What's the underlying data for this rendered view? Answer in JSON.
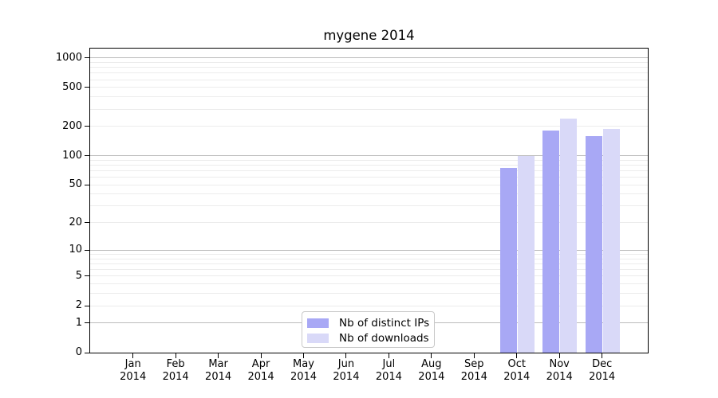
{
  "chart_data": {
    "type": "bar",
    "title": "mygene 2014",
    "categories": [
      "Jan",
      "Feb",
      "Mar",
      "Apr",
      "May",
      "Jun",
      "Jul",
      "Aug",
      "Sep",
      "Oct",
      "Nov",
      "Dec"
    ],
    "x_year_line": "2014",
    "series": [
      {
        "name": "Nb of distinct IPs",
        "color": "#a8a8f5",
        "values": [
          0,
          0,
          0,
          0,
          0,
          0,
          0,
          0,
          0,
          75,
          180,
          160
        ]
      },
      {
        "name": "Nb of downloads",
        "color": "#d9d9f8",
        "values": [
          0,
          0,
          0,
          0,
          0,
          0,
          0,
          0,
          0,
          100,
          240,
          190
        ]
      }
    ],
    "y_axis": {
      "scale": "log10(1+x)",
      "ticks": [
        0,
        1,
        2,
        5,
        10,
        20,
        50,
        100,
        200,
        500,
        1000
      ],
      "major_gridlines": [
        1,
        10,
        100,
        1000
      ],
      "minor_gridlines": [
        2,
        3,
        4,
        5,
        6,
        7,
        8,
        9,
        20,
        30,
        40,
        50,
        60,
        70,
        80,
        90,
        200,
        300,
        400,
        500,
        600,
        700,
        800,
        900
      ],
      "ylim": [
        0,
        1250
      ]
    },
    "xlabel": "",
    "ylabel": "",
    "grid": true,
    "legend_position": "lower center"
  },
  "colors": {
    "background": "#ffffff",
    "axis": "#000000",
    "major_grid": "#bbbbbb",
    "minor_grid": "#ececec",
    "legend_border": "#c9c9c9",
    "text": "#000000"
  }
}
